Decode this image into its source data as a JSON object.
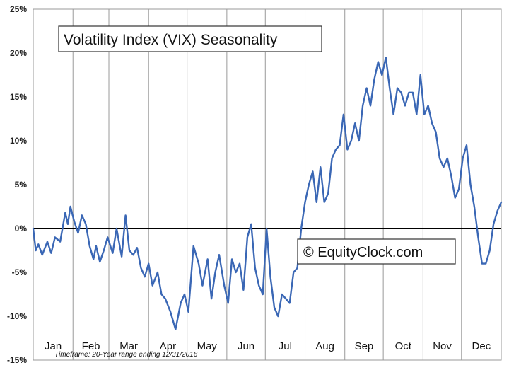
{
  "chart_data": {
    "type": "line",
    "title": "Volatility Index (VIX) Seasonality",
    "credit": "© EquityClock.com",
    "footnote": "Timeframe: 20-Year range ending 12/31/2016",
    "xlabel": "",
    "ylabel": "",
    "ylim": [
      -15,
      25
    ],
    "y_ticks": [
      "25%",
      "20%",
      "15%",
      "10%",
      "5%",
      "0%",
      "-5%",
      "-10%",
      "-15%"
    ],
    "months": [
      "Jan",
      "Feb",
      "Mar",
      "Apr",
      "May",
      "Jun",
      "Jul",
      "Aug",
      "Sep",
      "Oct",
      "Nov",
      "Dec"
    ],
    "grid": "vertical month dividers",
    "zero_line": true,
    "series": [
      {
        "color": "#3a67b5",
        "x_unit": "day_of_year",
        "x": [
          1,
          3,
          5,
          8,
          12,
          15,
          18,
          22,
          26,
          28,
          30,
          33,
          36,
          39,
          42,
          45,
          48,
          50,
          53,
          56,
          59,
          63,
          66,
          70,
          73,
          76,
          79,
          82,
          85,
          88,
          91,
          94,
          98,
          101,
          104,
          108,
          112,
          116,
          119,
          122,
          126,
          130,
          133,
          137,
          140,
          143,
          146,
          150,
          153,
          156,
          159,
          162,
          165,
          168,
          171,
          174,
          177,
          180,
          183,
          186,
          189,
          192,
          195,
          198,
          201,
          204,
          207,
          210,
          213,
          216,
          219,
          222,
          225,
          228,
          231,
          234,
          237,
          240,
          243,
          246,
          249,
          252,
          255,
          258,
          261,
          264,
          267,
          270,
          273,
          276,
          279,
          282,
          285,
          288,
          291,
          294,
          297,
          300,
          303,
          306,
          309,
          312,
          315,
          318,
          321,
          324,
          327,
          330,
          333,
          336,
          339,
          342,
          345,
          348,
          351,
          354,
          357,
          360,
          363,
          366
        ],
        "y": [
          0,
          -2.5,
          -1.8,
          -3,
          -1.5,
          -2.8,
          -1,
          -1.5,
          1.8,
          0.5,
          2.5,
          0.8,
          -0.5,
          1.5,
          0.5,
          -2,
          -3.5,
          -2,
          -3.8,
          -2.5,
          -1,
          -2.8,
          0,
          -3.2,
          1.5,
          -2.5,
          -3,
          -2.2,
          -4.5,
          -5.5,
          -4,
          -6.5,
          -5,
          -7.5,
          -8,
          -9.5,
          -11.5,
          -8.5,
          -7.5,
          -9.5,
          -2,
          -4,
          -6.5,
          -3.5,
          -8,
          -5,
          -3,
          -6.5,
          -8.5,
          -3.5,
          -5,
          -4,
          -7,
          -1,
          0.5,
          -4.5,
          -6.5,
          -7.5,
          0,
          -5.5,
          -9,
          -10,
          -7.5,
          -8,
          -8.5,
          -5,
          -4.5,
          0,
          3,
          5,
          6.5,
          3,
          7,
          3,
          4,
          8,
          9,
          9.5,
          13,
          9,
          10,
          12,
          10,
          14,
          16,
          14,
          17,
          19,
          17.5,
          19.5,
          16,
          13,
          16,
          15.5,
          14,
          15.5,
          15.5,
          13,
          17.5,
          13,
          14,
          12,
          11,
          8,
          7,
          8,
          6,
          3.5,
          4.5,
          8,
          9.5,
          5,
          2.5,
          -1,
          -4,
          -4,
          -2.5,
          0.5,
          2,
          3
        ]
      }
    ]
  }
}
